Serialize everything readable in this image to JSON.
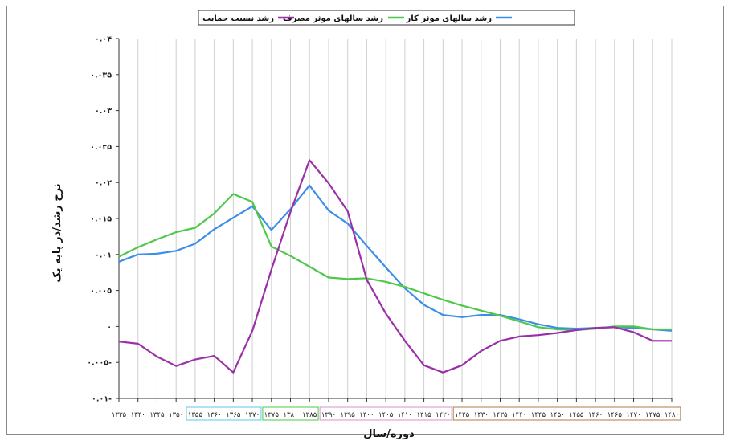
{
  "chart_data": {
    "type": "line",
    "xlabel": "دوره/سال",
    "ylabel": "نرخ رشد/در پایه یک",
    "x": [
      "۱۳۳۵",
      "۱۳۴۰",
      "۱۳۴۵",
      "۱۳۵۰",
      "۱۳۵۵",
      "۱۳۶۰",
      "۱۳۶۵",
      "۱۳۷۰",
      "۱۳۷۵",
      "۱۳۸۰",
      "۱۳۸۵",
      "۱۳۹۰",
      "۱۳۹۵",
      "۱۴۰۰",
      "۱۴۰۵",
      "۱۴۱۰",
      "۱۴۱۵",
      "۱۴۲۰",
      "۱۴۲۵",
      "۱۴۳۰",
      "۱۴۳۵",
      "۱۴۴۰",
      "۱۴۴۵",
      "۱۴۵۰",
      "۱۴۵۵",
      "۱۴۶۰",
      "۱۴۶۵",
      "۱۴۷۰",
      "۱۴۷۵",
      "۱۴۸۰"
    ],
    "ylim": [
      -0.01,
      0.04
    ],
    "yticks": [
      -0.01,
      -0.005,
      0,
      0.005,
      0.01,
      0.015,
      0.02,
      0.025,
      0.03,
      0.035,
      0.04
    ],
    "ytick_labels": [
      "۰.۰۱-",
      "۰.۰۰۵-",
      "۰",
      "۰.۰۰۵",
      "۰.۰۱",
      "۰.۰۱۵",
      "۰.۰۲",
      "۰.۰۲۵",
      "۰.۰۳",
      "۰.۰۳۵",
      "۰.۰۴"
    ],
    "grid": "vertical",
    "legend_position": "top",
    "series": [
      {
        "name": "رشد سالهای موثر کار",
        "color": "#3b8fe8",
        "values": [
          0.009,
          0.01,
          0.0101,
          0.0105,
          0.0115,
          0.0135,
          0.0151,
          0.0167,
          0.0134,
          0.0163,
          0.0196,
          0.0161,
          0.0143,
          0.0112,
          0.0082,
          0.0053,
          0.003,
          0.0016,
          0.0013,
          0.0016,
          0.0016,
          0.001,
          0.0003,
          -0.0002,
          -0.0003,
          -0.0002,
          -0.0001,
          -0.0002,
          -0.0004,
          -0.0006
        ]
      },
      {
        "name": "رشد سالهای موثر مصرف",
        "color": "#4fc84a",
        "values": [
          0.0097,
          0.011,
          0.0121,
          0.0131,
          0.0137,
          0.0157,
          0.0184,
          0.0173,
          0.0111,
          0.0098,
          0.0083,
          0.0068,
          0.0066,
          0.0067,
          0.0062,
          0.0055,
          0.0046,
          0.0037,
          0.0029,
          0.0022,
          0.0015,
          0.0007,
          -0.0001,
          -0.0004,
          -0.0005,
          -0.0003,
          0.0,
          0.0,
          -0.0004,
          -0.0004
        ]
      },
      {
        "name": "رشد نسبت حمایت",
        "color": "#9b2fa8",
        "values": [
          -0.0021,
          -0.0024,
          -0.0042,
          -0.0055,
          -0.0046,
          -0.0041,
          -0.0064,
          -0.0006,
          0.0079,
          0.0159,
          0.0231,
          0.0199,
          0.016,
          0.0065,
          0.0018,
          -0.002,
          -0.0054,
          -0.0064,
          -0.0054,
          -0.0034,
          -0.002,
          -0.0014,
          -0.0012,
          -0.0009,
          -0.0005,
          -0.0002,
          -0.0001,
          -0.0008,
          -0.002,
          -0.002
        ]
      }
    ]
  }
}
